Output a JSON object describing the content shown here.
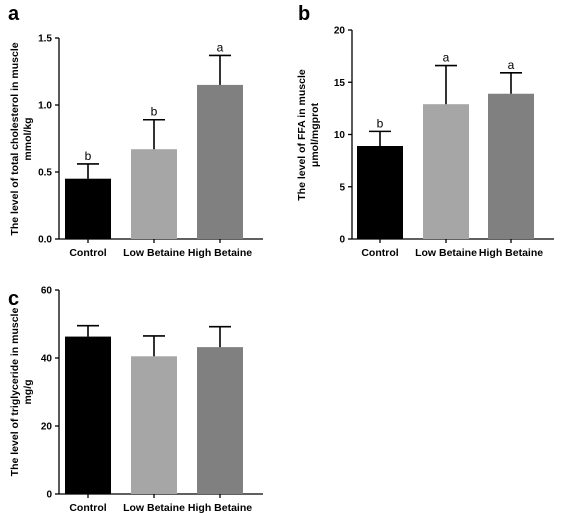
{
  "chart_data": [
    {
      "panel": "a",
      "type": "bar",
      "categories": [
        "Control",
        "Low Betaine",
        "High Betaine"
      ],
      "values": [
        0.45,
        0.67,
        1.15
      ],
      "errors": [
        0.11,
        0.22,
        0.22
      ],
      "significance": [
        "b",
        "b",
        "a"
      ],
      "ylabel_lines": [
        "The level of  total cholesterol in muscle",
        "mmol/kg"
      ],
      "ylim": [
        0,
        1.5
      ],
      "yticks": [
        "0.0",
        "0.5",
        "1.0",
        "1.5"
      ],
      "colors": [
        "#000000",
        "#a6a6a6",
        "#808080"
      ],
      "grid": false
    },
    {
      "panel": "b",
      "type": "bar",
      "categories": [
        "Control",
        "Low Betaine",
        "High Betaine"
      ],
      "values": [
        8.9,
        12.9,
        13.9
      ],
      "errors": [
        1.4,
        3.7,
        2.0
      ],
      "significance": [
        "b",
        "a",
        "a"
      ],
      "ylabel_lines": [
        "The level of FFA in muscle",
        "μmol/mgprot"
      ],
      "ylim": [
        0,
        20
      ],
      "yticks": [
        "0",
        "5",
        "10",
        "15",
        "20"
      ],
      "colors": [
        "#000000",
        "#a6a6a6",
        "#808080"
      ],
      "grid": false
    },
    {
      "panel": "c",
      "type": "bar",
      "categories": [
        "Control",
        "Low Betaine",
        "High Betaine"
      ],
      "values": [
        46.3,
        40.5,
        43.2
      ],
      "errors": [
        3.2,
        6.0,
        6.0
      ],
      "significance": [
        "",
        "",
        ""
      ],
      "ylabel_lines": [
        "The level of triglyceride in muscle",
        "mg/g"
      ],
      "ylim": [
        0,
        60
      ],
      "yticks": [
        "0",
        "20",
        "40",
        "60"
      ],
      "colors": [
        "#000000",
        "#a6a6a6",
        "#808080"
      ],
      "grid": false
    }
  ]
}
